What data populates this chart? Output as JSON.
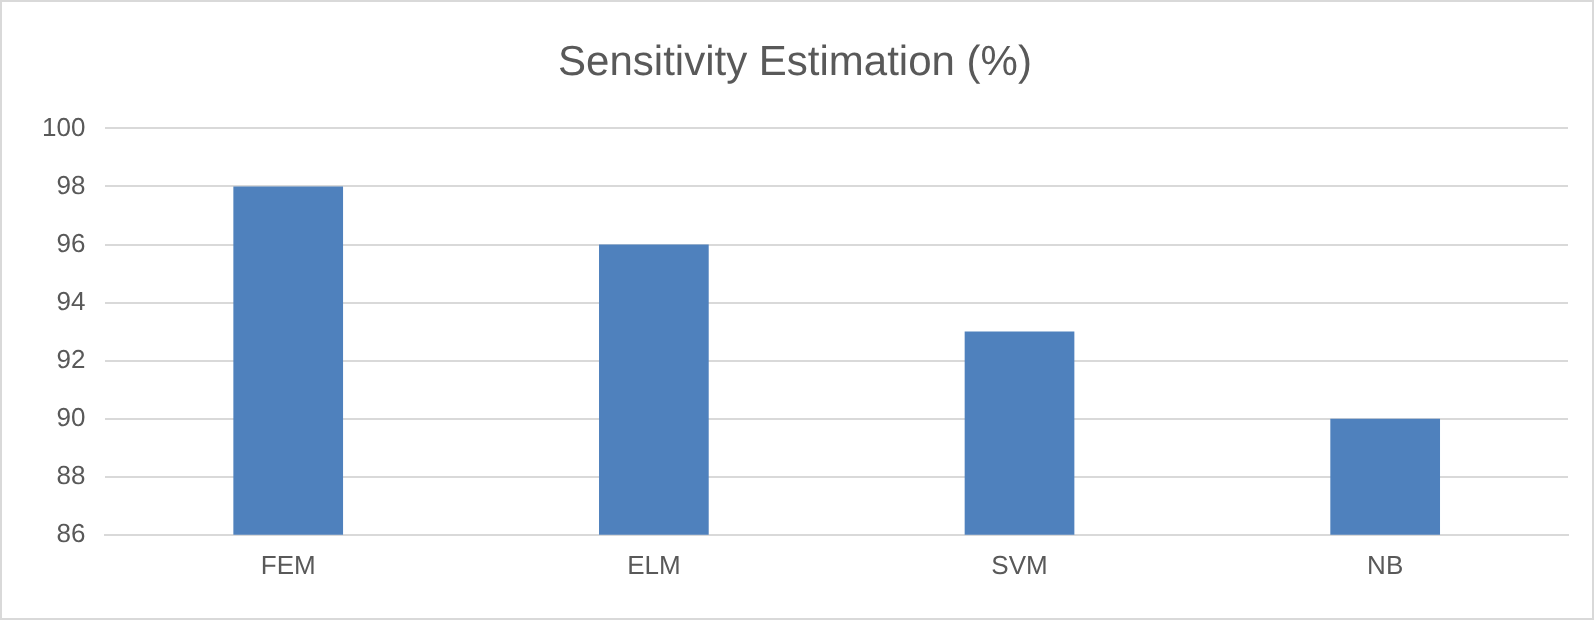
{
  "chart_data": {
    "type": "bar",
    "title": "Sensitivity Estimation (%)",
    "categories": [
      "FEM",
      "ELM",
      "SVM",
      "NB"
    ],
    "values": [
      98,
      96,
      93,
      90
    ],
    "color": "#4f81bd",
    "ylim": [
      86,
      100
    ],
    "yticks": [
      86,
      88,
      90,
      92,
      94,
      96,
      98,
      100
    ],
    "grid": "y"
  }
}
